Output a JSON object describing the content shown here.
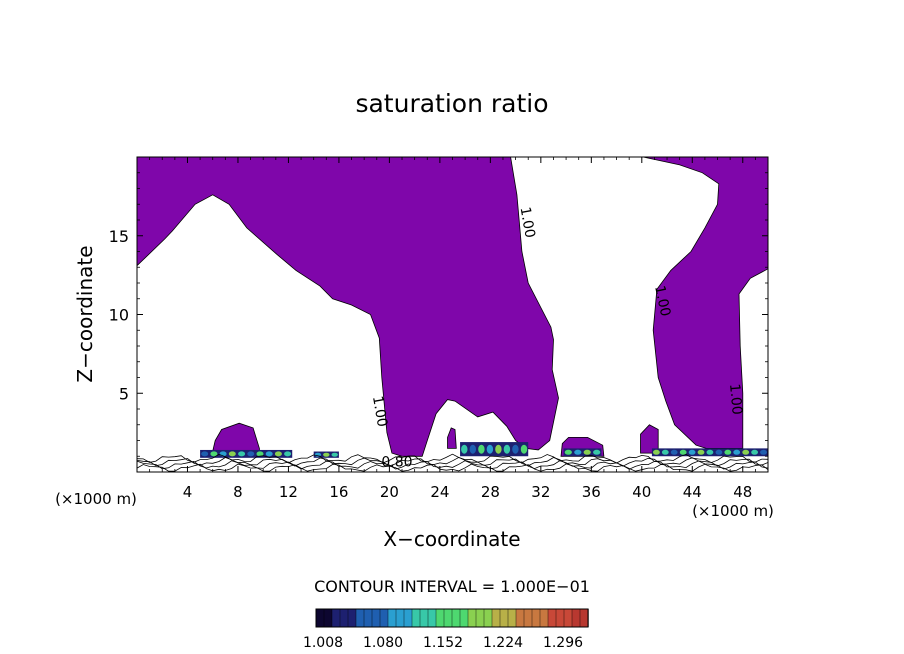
{
  "chart_data": {
    "type": "contour",
    "title": "saturation ratio",
    "xlabel": "X−coordinate",
    "ylabel": "Z−coordinate",
    "x_unit": "(×1000 m)",
    "z_unit": "(×1000 m)",
    "xlim": [
      0,
      50
    ],
    "ylim": [
      0,
      20
    ],
    "x_ticks": [
      4,
      8,
      12,
      16,
      20,
      24,
      28,
      32,
      36,
      40,
      44,
      48
    ],
    "y_ticks": [
      5,
      10,
      15
    ],
    "contour_interval_text": "CONTOUR INTERVAL = 1.000E−01",
    "contour_labels": [
      {
        "text": "1.00",
        "x": 30.6,
        "z": 15.8
      },
      {
        "text": "1.00",
        "x": 41.3,
        "z": 10.8
      },
      {
        "text": "1.00",
        "x": 18.9,
        "z": 3.8
      },
      {
        "text": "1.00",
        "x": 47.1,
        "z": 4.6
      },
      {
        "text": "0.80",
        "x": 20.6,
        "z": 0.35
      }
    ],
    "colorbar": {
      "ticks": [
        "1.008",
        "1.080",
        "1.152",
        "1.224",
        "1.296"
      ],
      "colors": [
        "#0d0630",
        "#1d2070",
        "#1f5fb0",
        "#2a9fd0",
        "#38c8a8",
        "#4ed870",
        "#8ad050",
        "#b8b048",
        "#c87840",
        "#c84838",
        "#b83830"
      ]
    },
    "fill_color": "#7f06aa",
    "regions": [
      {
        "name": "left-top-cloud",
        "points": [
          [
            0,
            20
          ],
          [
            29.6,
            20
          ],
          [
            30.1,
            17.6
          ],
          [
            30.5,
            14.0
          ],
          [
            31.0,
            12.0
          ],
          [
            32.8,
            9.2
          ],
          [
            33.0,
            8.4
          ],
          [
            32.9,
            6.5
          ],
          [
            33.4,
            4.7
          ],
          [
            32.7,
            2.0
          ],
          [
            31.8,
            1.4
          ],
          [
            30.8,
            1.5
          ],
          [
            30.0,
            2.0
          ],
          [
            29.3,
            2.9
          ],
          [
            28.2,
            3.8
          ],
          [
            27.0,
            3.5
          ],
          [
            25.2,
            4.5
          ],
          [
            24.6,
            4.6
          ],
          [
            23.7,
            3.7
          ],
          [
            23.0,
            2.0
          ],
          [
            22.6,
            1.0
          ],
          [
            21.0,
            1.0
          ],
          [
            20.2,
            1.2
          ],
          [
            19.8,
            2.5
          ],
          [
            19.4,
            6.0
          ],
          [
            19.2,
            8.5
          ],
          [
            18.5,
            10.0
          ],
          [
            17.0,
            10.6
          ],
          [
            15.5,
            11.0
          ],
          [
            14.5,
            11.8
          ],
          [
            12.6,
            12.8
          ],
          [
            11.1,
            13.8
          ],
          [
            8.7,
            15.5
          ],
          [
            7.3,
            17.0
          ],
          [
            6.0,
            17.6
          ],
          [
            4.6,
            17.0
          ],
          [
            2.8,
            15.3
          ],
          [
            2.2,
            14.8
          ],
          [
            0,
            13.1
          ]
        ]
      },
      {
        "name": "right-top-column",
        "points": [
          [
            40.1,
            20
          ],
          [
            50,
            20
          ],
          [
            50,
            12.9
          ],
          [
            48.6,
            12.3
          ],
          [
            47.7,
            11.3
          ],
          [
            47.8,
            8.0
          ],
          [
            48.0,
            5.0
          ],
          [
            48.0,
            1.5
          ],
          [
            45.1,
            1.5
          ],
          [
            44.3,
            1.7
          ],
          [
            42.6,
            3.0
          ],
          [
            41.9,
            4.5
          ],
          [
            41.3,
            6.0
          ],
          [
            40.9,
            9.0
          ],
          [
            41.2,
            11.6
          ],
          [
            42.3,
            12.8
          ],
          [
            43.9,
            14.0
          ],
          [
            45.0,
            15.5
          ],
          [
            46.0,
            17.0
          ],
          [
            46.1,
            18.3
          ],
          [
            44.8,
            19.0
          ],
          [
            43.0,
            19.5
          ]
        ]
      },
      {
        "name": "bump-x7",
        "points": [
          [
            5.9,
            1.0
          ],
          [
            9.7,
            1.0
          ],
          [
            9.7,
            1.5
          ],
          [
            9.2,
            2.8
          ],
          [
            8.1,
            3.1
          ],
          [
            6.7,
            2.7
          ],
          [
            6.2,
            2.0
          ]
        ]
      },
      {
        "name": "bump-x25",
        "points": [
          [
            24.6,
            1.5
          ],
          [
            25.3,
            1.5
          ],
          [
            25.2,
            2.7
          ],
          [
            24.9,
            2.8
          ],
          [
            24.6,
            2.2
          ]
        ]
      },
      {
        "name": "bump-x35",
        "points": [
          [
            33.6,
            1.0
          ],
          [
            37.0,
            1.0
          ],
          [
            36.9,
            1.7
          ],
          [
            35.7,
            2.2
          ],
          [
            34.2,
            2.2
          ],
          [
            33.7,
            1.8
          ]
        ]
      },
      {
        "name": "bump-x40",
        "points": [
          [
            39.9,
            1.2
          ],
          [
            41.3,
            1.2
          ],
          [
            41.3,
            2.7
          ],
          [
            40.6,
            3.0
          ],
          [
            39.9,
            2.4
          ]
        ]
      }
    ],
    "cores": [
      {
        "x0": 5.0,
        "x1": 12.3,
        "z0": 0.9,
        "z1": 1.4
      },
      {
        "x0": 14.0,
        "x1": 16.0,
        "z0": 0.9,
        "z1": 1.3
      },
      {
        "x0": 25.6,
        "x1": 31.0,
        "z0": 1.0,
        "z1": 1.9
      },
      {
        "x0": 33.8,
        "x1": 36.8,
        "z0": 1.0,
        "z1": 1.5
      },
      {
        "x0": 40.8,
        "x1": 50.0,
        "z0": 1.0,
        "z1": 1.5
      }
    ]
  }
}
